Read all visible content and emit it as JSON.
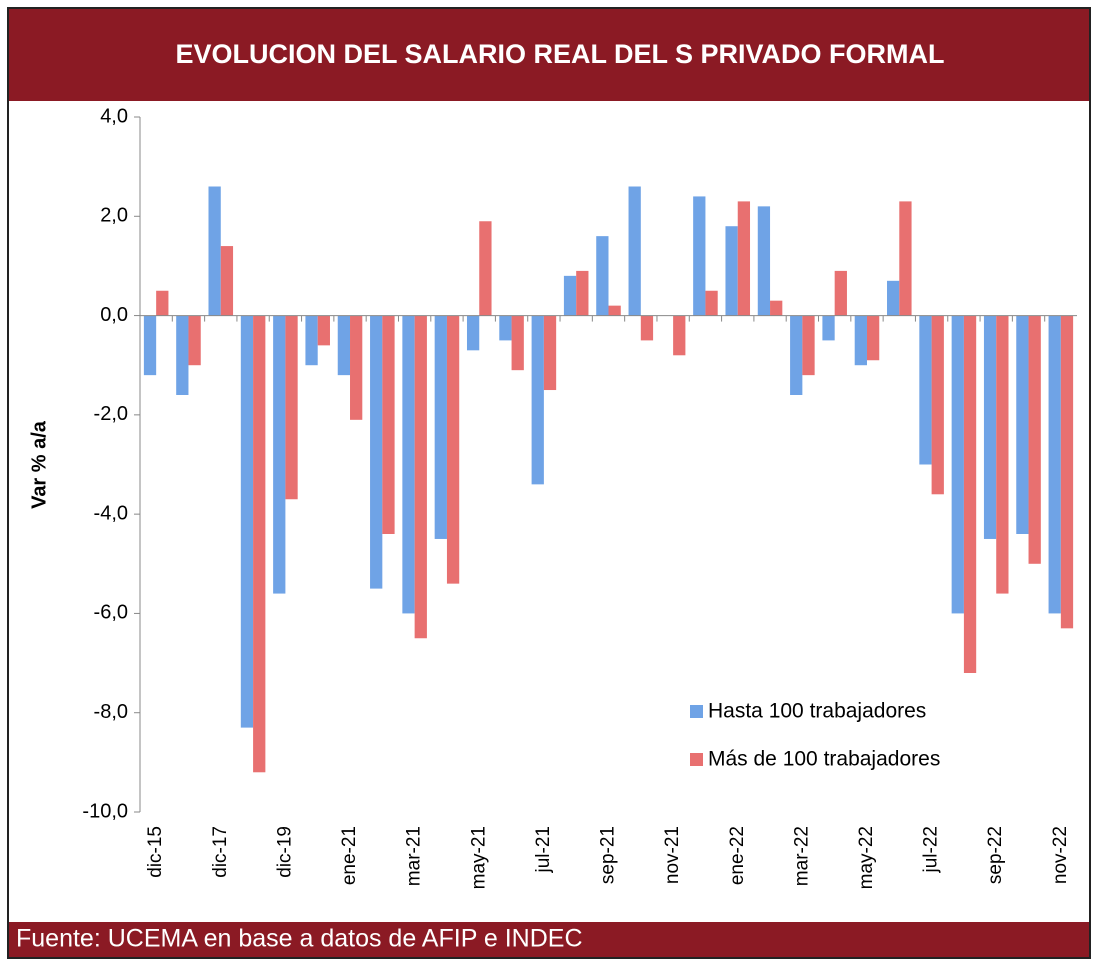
{
  "chart_data": {
    "type": "bar",
    "title": "EVOLUCION DEL SALARIO REAL DEL S PRIVADO FORMAL",
    "y_label": "Var % a/a",
    "source": "Fuente: UCEMA en base a datos de AFIP e INDEC",
    "categories": [
      "dic-15",
      null,
      "dic-17",
      null,
      "dic-19",
      null,
      "ene-21",
      null,
      "mar-21",
      null,
      "may-21",
      null,
      "jul-21",
      null,
      "sep-21",
      null,
      "nov-21",
      null,
      "ene-22",
      null,
      "mar-22",
      null,
      "may-22",
      null,
      "jul-22",
      null,
      "sep-22",
      null,
      "nov-22"
    ],
    "series": [
      {
        "name": "Hasta 100 trabajadores",
        "color": "#6fa3e6",
        "values": [
          -1.2,
          -1.6,
          2.6,
          -8.3,
          -5.6,
          -1.0,
          -1.2,
          -5.5,
          -6.0,
          -4.5,
          -0.7,
          -0.5,
          -3.4,
          0.8,
          1.6,
          2.6,
          0.0,
          2.4,
          1.8,
          2.2,
          -1.6,
          -0.5,
          -1.0,
          0.7,
          -3.0,
          -6.0,
          -4.5,
          -4.4,
          -6.0
        ]
      },
      {
        "name": "Más de 100 trabajadores",
        "color": "#e87070",
        "values": [
          0.5,
          -1.0,
          1.4,
          -9.2,
          -3.7,
          -0.6,
          -2.1,
          -4.4,
          -6.5,
          -5.4,
          1.9,
          -1.1,
          -1.5,
          0.9,
          0.2,
          -0.5,
          -0.8,
          0.5,
          2.3,
          0.3,
          -1.2,
          0.9,
          -0.9,
          2.3,
          -3.6,
          -7.2,
          -5.6,
          -5.0,
          -6.3
        ]
      }
    ],
    "ylim": [
      -10,
      4
    ],
    "yticks": [
      {
        "value": 4,
        "label": "4,0"
      },
      {
        "value": 2,
        "label": "2,0"
      },
      {
        "value": 0,
        "label": "0,0"
      },
      {
        "value": -2,
        "label": "-2,0"
      },
      {
        "value": -4,
        "label": "-4,0"
      },
      {
        "value": -6,
        "label": "-6,0"
      },
      {
        "value": -8,
        "label": "-8,0"
      },
      {
        "value": -10,
        "label": "-10,0"
      }
    ],
    "legend": "bottom-right"
  }
}
